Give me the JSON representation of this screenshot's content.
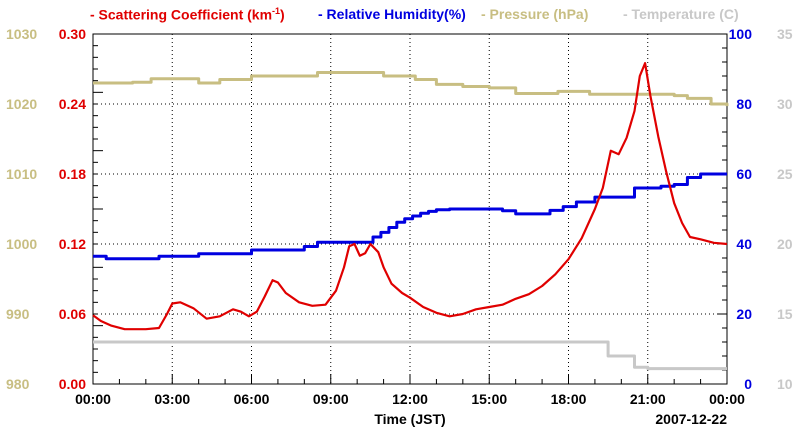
{
  "chart_data": {
    "type": "line",
    "xlabel": "Time (JST)",
    "date_label": "2007-12-22",
    "x_ticks": [
      "00:00",
      "03:00",
      "06:00",
      "09:00",
      "12:00",
      "15:00",
      "18:00",
      "21:00",
      "00:00"
    ],
    "x_range_hours": [
      0,
      24
    ],
    "colors": {
      "scattering": "#e00000",
      "humidity": "#0000e0",
      "pressure": "#c8be82",
      "temperature": "#c8c8c8"
    },
    "legend": {
      "scattering_pre": "- Scattering Coefficient (km",
      "scattering_sup": "-1",
      "scattering_post": ")",
      "humidity": "- Relative Humidity(%)",
      "pressure": "- Pressure (hPa)",
      "temperature": "- Temperature (C)"
    },
    "axes": {
      "pressure": {
        "range": [
          980,
          1030
        ],
        "ticks": [
          "980",
          "990",
          "1000",
          "1010",
          "1020",
          "1030"
        ]
      },
      "scattering": {
        "range": [
          0,
          0.3
        ],
        "ticks": [
          "0.00",
          "0.06",
          "0.12",
          "0.18",
          "0.24",
          "0.30"
        ]
      },
      "humidity": {
        "range": [
          0,
          100
        ],
        "ticks": [
          "0",
          "20",
          "40",
          "60",
          "80",
          "100"
        ]
      },
      "temperature": {
        "range": [
          10,
          35
        ],
        "ticks": [
          "10",
          "15",
          "20",
          "25",
          "30",
          "35"
        ]
      }
    },
    "series": [
      {
        "name": "Scattering Coefficient",
        "axis": "scattering",
        "x": [
          0,
          0.3,
          0.7,
          1.2,
          2.0,
          2.5,
          2.8,
          3.0,
          3.3,
          3.8,
          4.3,
          4.8,
          5.3,
          5.6,
          5.9,
          6.2,
          6.5,
          6.8,
          7.0,
          7.3,
          7.8,
          8.3,
          8.8,
          9.2,
          9.5,
          9.7,
          9.9,
          10.1,
          10.3,
          10.5,
          10.8,
          11.0,
          11.3,
          11.7,
          12.0,
          12.5,
          13.0,
          13.5,
          14.0,
          14.5,
          15.0,
          15.5,
          16.0,
          16.5,
          17.0,
          17.5,
          18.0,
          18.5,
          19.0,
          19.3,
          19.6,
          19.9,
          20.2,
          20.5,
          20.7,
          20.9,
          21.1,
          21.4,
          21.7,
          22.0,
          22.3,
          22.6,
          23.0,
          23.5,
          24.0
        ],
        "values": [
          0.059,
          0.054,
          0.05,
          0.047,
          0.047,
          0.048,
          0.06,
          0.069,
          0.07,
          0.065,
          0.056,
          0.058,
          0.064,
          0.062,
          0.058,
          0.062,
          0.075,
          0.089,
          0.087,
          0.078,
          0.07,
          0.067,
          0.068,
          0.08,
          0.1,
          0.118,
          0.12,
          0.11,
          0.112,
          0.12,
          0.113,
          0.1,
          0.086,
          0.078,
          0.074,
          0.066,
          0.061,
          0.058,
          0.06,
          0.064,
          0.066,
          0.068,
          0.073,
          0.077,
          0.084,
          0.094,
          0.107,
          0.125,
          0.15,
          0.168,
          0.2,
          0.197,
          0.211,
          0.234,
          0.264,
          0.275,
          0.247,
          0.212,
          0.182,
          0.155,
          0.138,
          0.126,
          0.124,
          0.121,
          0.12
        ]
      },
      {
        "name": "Relative Humidity",
        "axis": "humidity",
        "x": [
          0,
          0.5,
          2.5,
          4.0,
          6.0,
          8.0,
          8.5,
          10.3,
          10.6,
          10.9,
          11.2,
          11.5,
          11.8,
          12.1,
          12.4,
          12.7,
          13.0,
          13.5,
          15.5,
          16.0,
          17.3,
          17.8,
          18.3,
          19.0,
          20.5,
          21.5,
          22.0,
          22.5,
          23.0,
          24.0
        ],
        "values": [
          36.5,
          35.8,
          36.5,
          37.2,
          38.3,
          39.3,
          40.5,
          40.5,
          42.0,
          43.3,
          44.7,
          46.2,
          47.2,
          48.0,
          48.8,
          49.3,
          49.8,
          50.0,
          49.5,
          48.6,
          49.6,
          50.7,
          52.0,
          53.4,
          56.0,
          56.5,
          57.0,
          59.0,
          60.0,
          60.0
        ]
      },
      {
        "name": "Pressure",
        "axis": "pressure",
        "x": [
          0,
          1.5,
          2.2,
          2.8,
          4.0,
          4.8,
          6.0,
          8.5,
          9.0,
          11.0,
          12.2,
          13.0,
          14.0,
          15.0,
          16.0,
          17.0,
          17.6,
          18.8,
          22.0,
          22.5,
          23.4,
          24.0
        ],
        "values": [
          1023,
          1023.1,
          1023.6,
          1023.6,
          1023,
          1023.5,
          1024,
          1024.5,
          1024.5,
          1024,
          1023.5,
          1022.8,
          1022.5,
          1022.3,
          1021.5,
          1021.5,
          1021.8,
          1021.4,
          1021.2,
          1020.8,
          1020,
          1019.7
        ]
      },
      {
        "name": "Temperature",
        "axis": "temperature",
        "x": [
          0,
          18.5,
          19.0,
          19.5,
          20.0,
          20.5,
          21.0,
          22.0,
          24.0
        ],
        "values": [
          13.0,
          13.0,
          13.0,
          12.0,
          12.0,
          11.2,
          11.1,
          11.1,
          11.1
        ]
      }
    ]
  }
}
